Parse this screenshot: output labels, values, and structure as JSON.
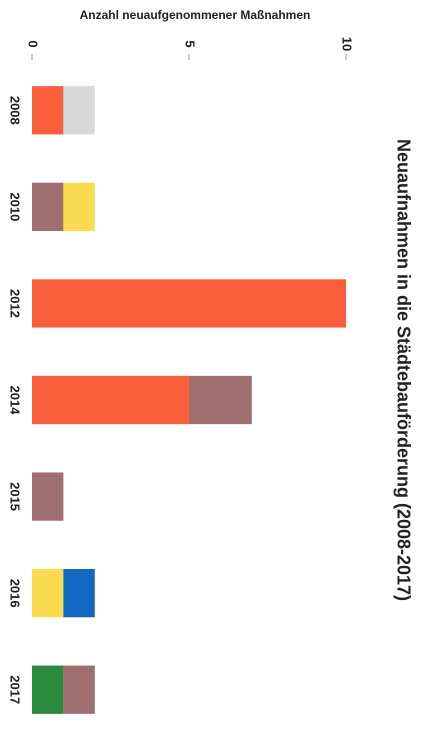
{
  "chart_data": {
    "type": "bar",
    "stacked": true,
    "orientation": "horizontal",
    "title": "Neuaufnahmen in die Städtebauförderung (2008-2017)",
    "x_label": "Anzahl neuaufgenommener Maßnahmen",
    "categories": [
      "2008",
      "2010",
      "2012",
      "2014",
      "2015",
      "2016",
      "2017"
    ],
    "series": [
      {
        "color": "#fa5f3c",
        "values": [
          1,
          null,
          10,
          5,
          null,
          null,
          null
        ]
      },
      {
        "color": "#2a8a3e",
        "values": [
          null,
          null,
          null,
          null,
          null,
          null,
          1
        ]
      },
      {
        "color": "#a07070",
        "values": [
          null,
          1,
          null,
          2,
          1,
          null,
          1
        ]
      },
      {
        "color": "#d8d8d8",
        "values": [
          1,
          null,
          null,
          null,
          null,
          null,
          null
        ]
      },
      {
        "color": "#fbdc50",
        "values": [
          null,
          1,
          null,
          null,
          null,
          1,
          null
        ]
      },
      {
        "color": "#1268c0",
        "values": [
          null,
          null,
          null,
          null,
          null,
          1,
          null
        ]
      }
    ],
    "xlim": [
      0,
      10
    ],
    "xticks": [
      0,
      5,
      10
    ],
    "grid": false
  }
}
